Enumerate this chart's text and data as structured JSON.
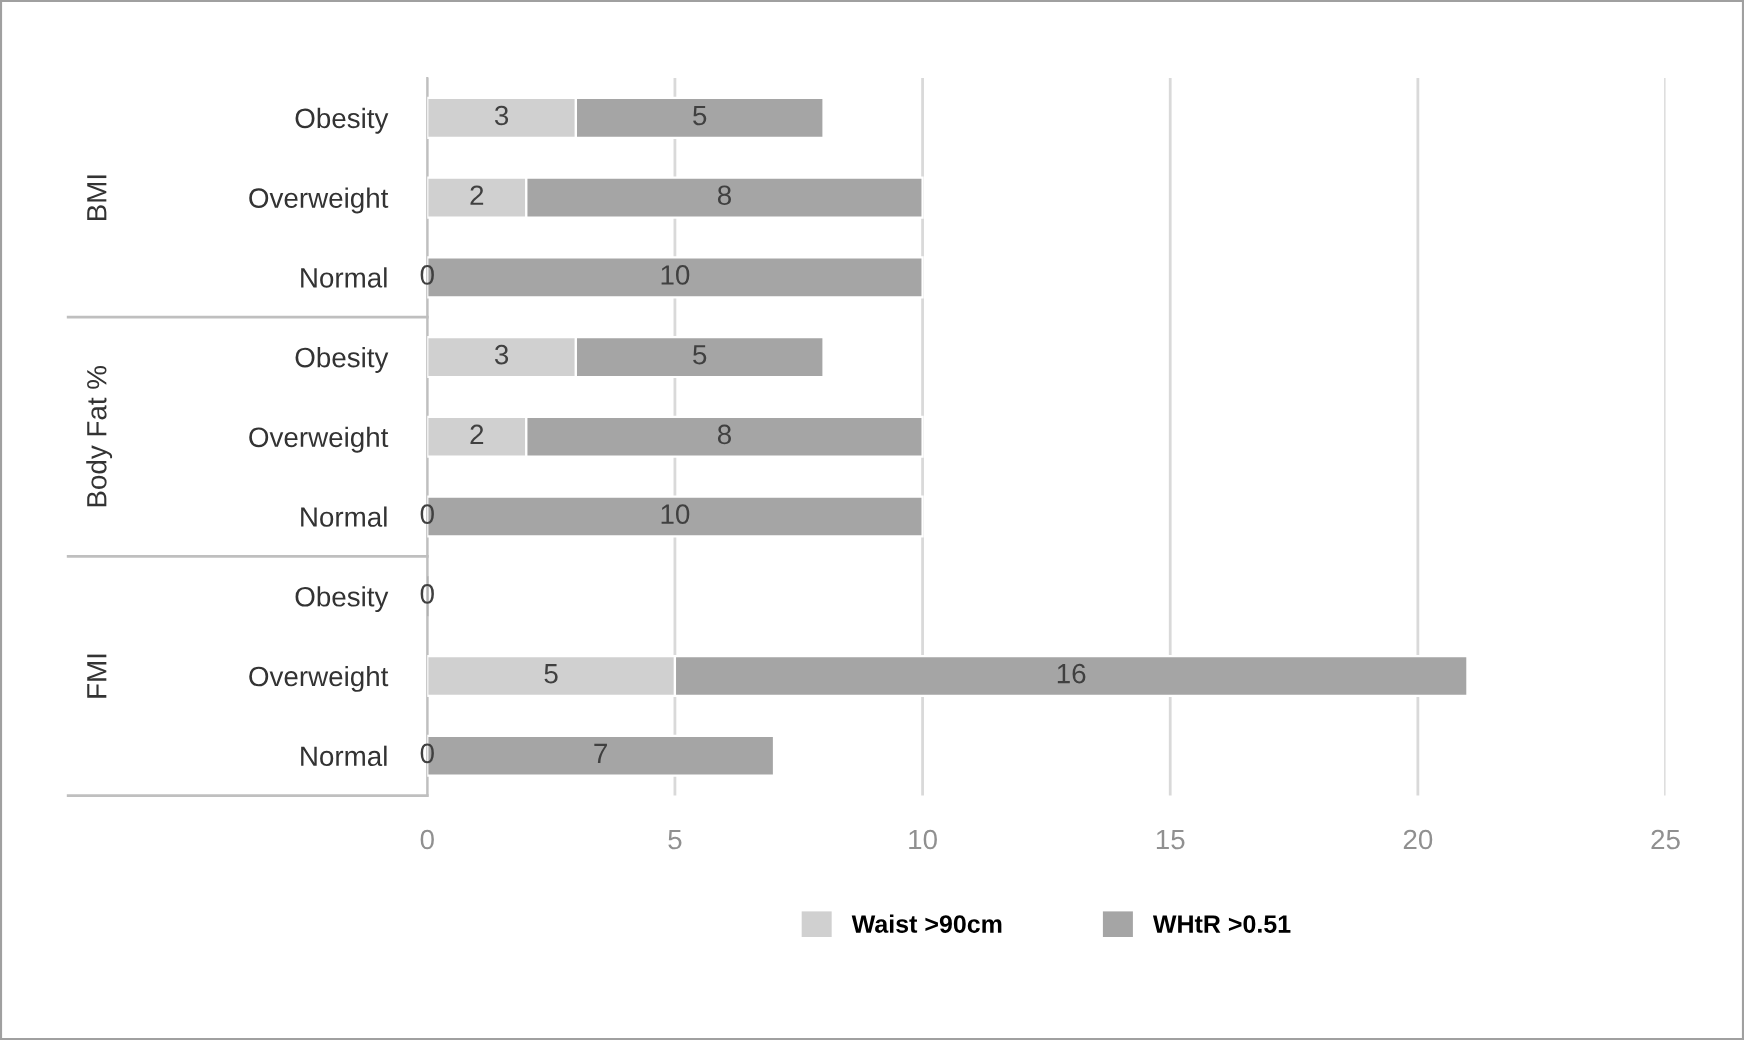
{
  "chart_data": {
    "type": "bar",
    "orientation": "horizontal",
    "stacked": true,
    "categories": [
      "Obesity",
      "Overweight",
      "Normal",
      "Obesity",
      "Overweight",
      "Normal",
      "Obesity",
      "Overweight",
      "Normal"
    ],
    "series": [
      {
        "name": "Waist >90cm",
        "color": "#d0d0d0",
        "values": [
          3,
          2,
          0,
          3,
          2,
          0,
          0,
          5,
          0
        ],
        "value_labels": [
          "3",
          "2",
          "0",
          "3",
          "2",
          "0",
          "0",
          "5",
          "0"
        ]
      },
      {
        "name": "WHtR >0.51",
        "color": "#a5a5a5",
        "values": [
          5,
          8,
          10,
          5,
          8,
          10,
          0,
          16,
          7
        ],
        "value_labels": [
          "5",
          "8",
          "10",
          "5",
          "8",
          "10",
          null,
          "16",
          "7"
        ]
      }
    ],
    "annotations": [
      "BMI",
      "Body Fat %",
      "FMI"
    ],
    "xlim": [
      0,
      25
    ],
    "xticks": [
      0,
      5,
      10,
      15,
      20,
      25
    ],
    "grid": "x",
    "legend": "bottom"
  }
}
